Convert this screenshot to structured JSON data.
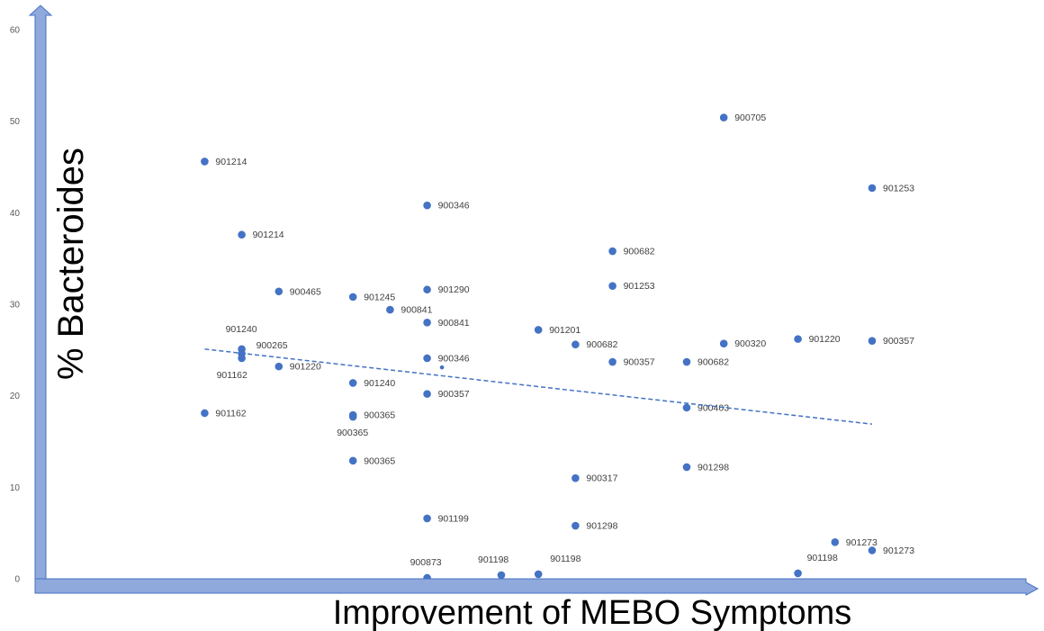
{
  "chart_data": {
    "type": "scatter",
    "xlabel": "Improvement of MEBO Symptoms",
    "ylabel": "% Bacteroides",
    "ylim": [
      0,
      60
    ],
    "yticks": [
      "0",
      "10",
      "20",
      "30",
      "40",
      "50",
      "60"
    ],
    "xlim": [
      0,
      10
    ],
    "grid": false,
    "trendline": {
      "style": "dashed",
      "from": [
        1,
        25.1
      ],
      "to": [
        10,
        16.9
      ]
    },
    "marker_color": "#4472C4",
    "points": [
      {
        "x": 1,
        "y": 45.6,
        "label": "901214"
      },
      {
        "x": 1.5,
        "y": 37.6,
        "label": "901214"
      },
      {
        "x": 2,
        "y": 31.4,
        "label": "900465"
      },
      {
        "x": 3,
        "y": 30.8,
        "label": "901245"
      },
      {
        "x": 3.5,
        "y": 29.4,
        "label": "900841"
      },
      {
        "x": 4,
        "y": 40.8,
        "label": "900346"
      },
      {
        "x": 4,
        "y": 31.6,
        "label": "901290"
      },
      {
        "x": 4,
        "y": 28.0,
        "label": "900841"
      },
      {
        "x": 1.5,
        "y": 25.1,
        "label": "901240"
      },
      {
        "x": 1.5,
        "y": 24.6,
        "label": "900265"
      },
      {
        "x": 1.5,
        "y": 24.1,
        "label": "901162"
      },
      {
        "x": 2,
        "y": 23.2,
        "label": "901220"
      },
      {
        "x": 1,
        "y": 18.1,
        "label": "901162"
      },
      {
        "x": 3,
        "y": 21.4,
        "label": "901240"
      },
      {
        "x": 3,
        "y": 17.9,
        "label": "900365"
      },
      {
        "x": 3,
        "y": 17.7,
        "label": "900365"
      },
      {
        "x": 3,
        "y": 12.9,
        "label": "900365"
      },
      {
        "x": 4,
        "y": 24.1,
        "label": "900346"
      },
      {
        "x": 4,
        "y": 20.2,
        "label": "900357"
      },
      {
        "x": 4,
        "y": 6.6,
        "label": "901199"
      },
      {
        "x": 4,
        "y": 0.1,
        "label": "900873"
      },
      {
        "x": 5,
        "y": 0.4,
        "label": "901198"
      },
      {
        "x": 5.5,
        "y": 0.5,
        "label": "901198"
      },
      {
        "x": 5.5,
        "y": 27.2,
        "label": "901201"
      },
      {
        "x": 6,
        "y": 25.6,
        "label": "900682"
      },
      {
        "x": 6,
        "y": 11.0,
        "label": "900317"
      },
      {
        "x": 6,
        "y": 5.8,
        "label": "901298"
      },
      {
        "x": 6.5,
        "y": 35.8,
        "label": "900682"
      },
      {
        "x": 6.5,
        "y": 32.0,
        "label": "901253"
      },
      {
        "x": 6.5,
        "y": 23.7,
        "label": "900357"
      },
      {
        "x": 7.5,
        "y": 23.7,
        "label": "900682"
      },
      {
        "x": 7.5,
        "y": 18.7,
        "label": "900403"
      },
      {
        "x": 7.5,
        "y": 12.2,
        "label": "901298"
      },
      {
        "x": 8,
        "y": 50.4,
        "label": "900705"
      },
      {
        "x": 8,
        "y": 25.7,
        "label": "900320"
      },
      {
        "x": 9,
        "y": 26.2,
        "label": "901220"
      },
      {
        "x": 9,
        "y": 0.6,
        "label": "901198"
      },
      {
        "x": 9.5,
        "y": 4.0,
        "label": "901273"
      },
      {
        "x": 10,
        "y": 42.7,
        "label": "901253"
      },
      {
        "x": 10,
        "y": 26.0,
        "label": "900357"
      },
      {
        "x": 10,
        "y": 3.1,
        "label": "901273"
      },
      {
        "x": 4.2,
        "y": 23.1,
        "label": ""
      }
    ]
  }
}
